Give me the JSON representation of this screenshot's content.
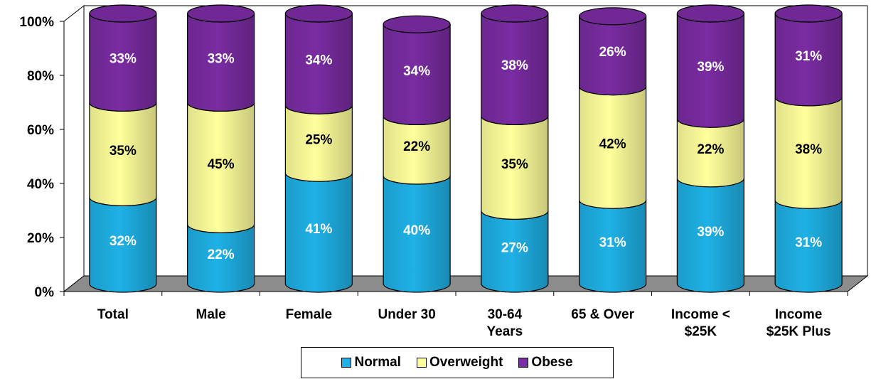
{
  "chart_data": {
    "type": "bar",
    "stacked": true,
    "categories": [
      "Total",
      "Male",
      "Female",
      "Under 30",
      "30-64 Years",
      "65 & Over",
      "Income < $25K",
      "Income $25K Plus"
    ],
    "category_lines": [
      [
        "Total"
      ],
      [
        "Male"
      ],
      [
        "Female"
      ],
      [
        "Under 30"
      ],
      [
        "30-64",
        "Years"
      ],
      [
        "65 & Over"
      ],
      [
        "Income <",
        "$25K"
      ],
      [
        "Income",
        "$25K Plus"
      ]
    ],
    "series": [
      {
        "name": "Normal",
        "values": [
          32,
          22,
          41,
          40,
          27,
          31,
          39,
          31
        ],
        "labels": [
          "32%",
          "22%",
          "41%",
          "40%",
          "27%",
          "31%",
          "39%",
          "31%"
        ],
        "color": "#1fb1e6",
        "label_color": "#ffffff"
      },
      {
        "name": "Overweight",
        "values": [
          35,
          45,
          25,
          22,
          35,
          42,
          22,
          38
        ],
        "labels": [
          "35%",
          "45%",
          "25%",
          "22%",
          "35%",
          "42%",
          "22%",
          "38%"
        ],
        "color": "#ffff9c",
        "label_color": "#000000"
      },
      {
        "name": "Obese",
        "values": [
          33,
          33,
          34,
          34,
          38,
          26,
          39,
          31
        ],
        "labels": [
          "33%",
          "33%",
          "34%",
          "34%",
          "38%",
          "26%",
          "39%",
          "31%"
        ],
        "color": "#7a2ca2",
        "label_color": "#ffffff"
      }
    ],
    "y_ticks": [
      "0%",
      "20%",
      "40%",
      "60%",
      "80%",
      "100%"
    ],
    "ylim": [
      0,
      100
    ],
    "legend_position": "bottom",
    "grid": false,
    "title": "",
    "xlabel": "",
    "ylabel": ""
  }
}
